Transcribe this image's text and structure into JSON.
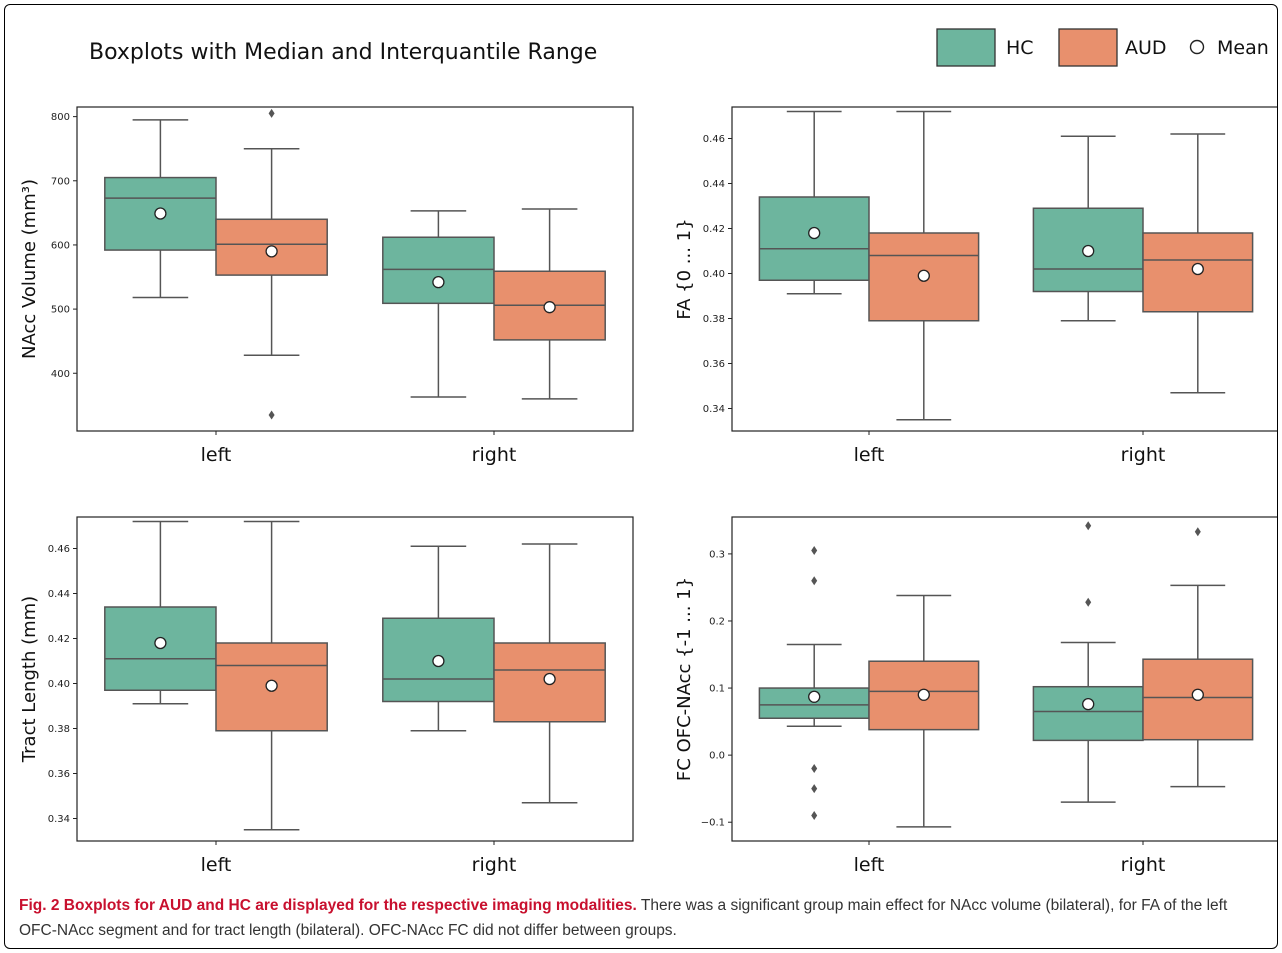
{
  "title": "Boxplots with Median and Interquantile Range",
  "legend": {
    "items": [
      {
        "label": "HC",
        "color": "#6DB59E"
      },
      {
        "label": "AUD",
        "color": "#E8906D"
      }
    ],
    "mean_label": "Mean"
  },
  "caption": {
    "bold": "Fig. 2 Boxplots for AUD and HC are displayed for the respective imaging modalities.",
    "text": " There was a significant group main effect for NAcc volume (bilateral), for FA of the left OFC-NAcc segment and for tract length (bilateral). OFC-NAcc FC did not differ between groups."
  },
  "chart_data": [
    {
      "type": "box",
      "ylabel": "NAcc Volume (mm³)",
      "categories": [
        "left",
        "right"
      ],
      "ylim": [
        310,
        815
      ],
      "yticks": [
        400,
        500,
        600,
        700,
        800
      ],
      "series": [
        {
          "name": "HC",
          "stats": [
            {
              "whislo": 518,
              "q1": 592,
              "med": 673,
              "q3": 705,
              "whishi": 795,
              "mean": 649,
              "fliers": []
            },
            {
              "whislo": 363,
              "q1": 509,
              "med": 562,
              "q3": 612,
              "whishi": 653,
              "mean": 542,
              "fliers": []
            }
          ]
        },
        {
          "name": "AUD",
          "stats": [
            {
              "whislo": 428,
              "q1": 553,
              "med": 601,
              "q3": 640,
              "whishi": 750,
              "mean": 590,
              "fliers": [
                805,
                335
              ]
            },
            {
              "whislo": 360,
              "q1": 452,
              "med": 506,
              "q3": 559,
              "whishi": 656,
              "mean": 503,
              "fliers": []
            }
          ]
        }
      ]
    },
    {
      "type": "box",
      "ylabel": "FA {0 ... 1}",
      "categories": [
        "left",
        "right"
      ],
      "ylim": [
        0.33,
        0.474
      ],
      "yticks": [
        0.34,
        0.36,
        0.38,
        0.4,
        0.42,
        0.44,
        0.46
      ],
      "yticks_labels": [
        "0.34",
        "0.36",
        "0.38",
        "0.40",
        "0.42",
        "0.44",
        "0.46"
      ],
      "series": [
        {
          "name": "HC",
          "stats": [
            {
              "whislo": 0.391,
              "q1": 0.397,
              "med": 0.411,
              "q3": 0.434,
              "whishi": 0.472,
              "mean": 0.418,
              "fliers": []
            },
            {
              "whislo": 0.379,
              "q1": 0.392,
              "med": 0.402,
              "q3": 0.429,
              "whishi": 0.461,
              "mean": 0.41,
              "fliers": []
            }
          ]
        },
        {
          "name": "AUD",
          "stats": [
            {
              "whislo": 0.335,
              "q1": 0.379,
              "med": 0.408,
              "q3": 0.418,
              "whishi": 0.472,
              "mean": 0.399,
              "fliers": []
            },
            {
              "whislo": 0.347,
              "q1": 0.383,
              "med": 0.406,
              "q3": 0.418,
              "whishi": 0.462,
              "mean": 0.402,
              "fliers": []
            }
          ]
        }
      ]
    },
    {
      "type": "box",
      "ylabel": "Tract Length (mm)",
      "categories": [
        "left",
        "right"
      ],
      "ylim": [
        0.33,
        0.474
      ],
      "yticks": [
        0.34,
        0.36,
        0.38,
        0.4,
        0.42,
        0.44,
        0.46
      ],
      "yticks_labels": [
        "0.34",
        "0.36",
        "0.38",
        "0.40",
        "0.42",
        "0.44",
        "0.46"
      ],
      "series": [
        {
          "name": "HC",
          "stats": [
            {
              "whislo": 0.391,
              "q1": 0.397,
              "med": 0.411,
              "q3": 0.434,
              "whishi": 0.472,
              "mean": 0.418,
              "fliers": []
            },
            {
              "whislo": 0.379,
              "q1": 0.392,
              "med": 0.402,
              "q3": 0.429,
              "whishi": 0.461,
              "mean": 0.41,
              "fliers": []
            }
          ]
        },
        {
          "name": "AUD",
          "stats": [
            {
              "whislo": 0.335,
              "q1": 0.379,
              "med": 0.408,
              "q3": 0.418,
              "whishi": 0.472,
              "mean": 0.399,
              "fliers": []
            },
            {
              "whislo": 0.347,
              "q1": 0.383,
              "med": 0.406,
              "q3": 0.418,
              "whishi": 0.462,
              "mean": 0.402,
              "fliers": []
            }
          ]
        }
      ]
    },
    {
      "type": "box",
      "ylabel": "FC OFC-NAcc {-1 ... 1}",
      "categories": [
        "left",
        "right"
      ],
      "ylim": [
        -0.128,
        0.355
      ],
      "yticks": [
        -0.1,
        0.0,
        0.1,
        0.2,
        0.3
      ],
      "yticks_labels": [
        "−0.1",
        "0.0",
        "0.1",
        "0.2",
        "0.3"
      ],
      "series": [
        {
          "name": "HC",
          "stats": [
            {
              "whislo": 0.043,
              "q1": 0.055,
              "med": 0.075,
              "q3": 0.1,
              "whishi": 0.165,
              "mean": 0.087,
              "fliers": [
                0.305,
                0.26,
                -0.02,
                -0.05,
                -0.09
              ]
            },
            {
              "whislo": -0.07,
              "q1": 0.022,
              "med": 0.065,
              "q3": 0.102,
              "whishi": 0.168,
              "mean": 0.076,
              "fliers": [
                0.342,
                0.228
              ]
            }
          ]
        },
        {
          "name": "AUD",
          "stats": [
            {
              "whislo": -0.107,
              "q1": 0.038,
              "med": 0.095,
              "q3": 0.14,
              "whishi": 0.238,
              "mean": 0.09,
              "fliers": []
            },
            {
              "whislo": -0.047,
              "q1": 0.023,
              "med": 0.086,
              "q3": 0.143,
              "whishi": 0.253,
              "mean": 0.09,
              "fliers": [
                0.333
              ]
            }
          ]
        }
      ]
    }
  ]
}
